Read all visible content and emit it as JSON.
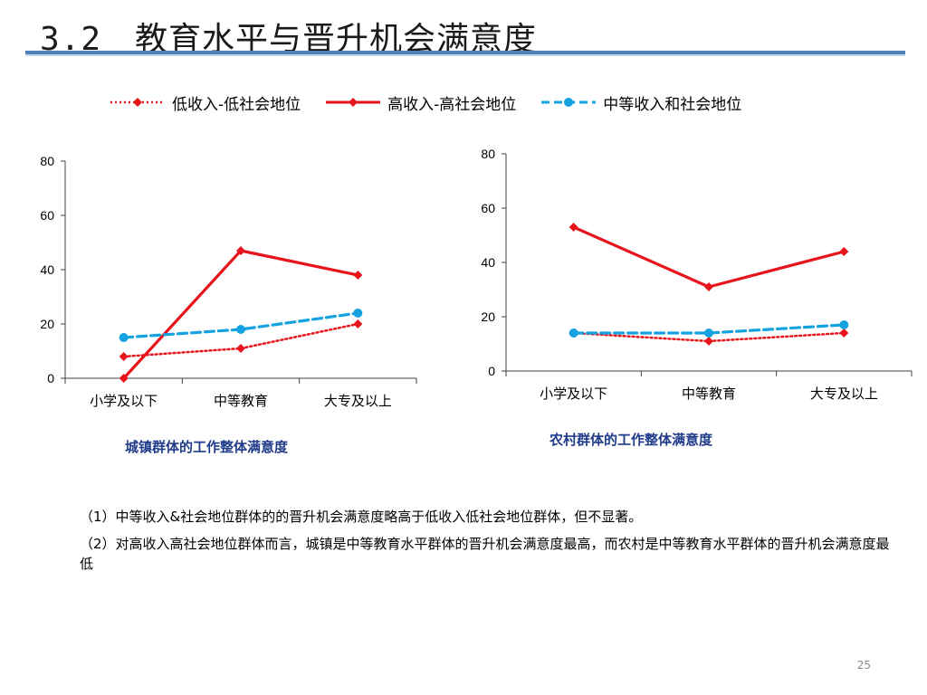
{
  "slide": {
    "title": "3.2　教育水平与晋升机会满意度",
    "page_number": "25",
    "notes": [
      "（1）中等收入&社会地位群体的的晋升机会满意度略高于低收入低社会地位群体，但不显著。",
      "（2）对高收入高社会地位群体而言，城镇是中等教育水平群体的晋升机会满意度最高，而农村是中等教育水平群体的晋升机会满意度最低"
    ]
  },
  "colors": {
    "title_rule": "#4f81bd",
    "red": "#e8141b",
    "blue": "#14a2e0",
    "axis": "#404040",
    "caption": "#1f3b8a"
  },
  "legend": [
    {
      "label": "低收入-低社会地位",
      "color": "#e8141b",
      "style": "dotted",
      "marker": "diamond"
    },
    {
      "label": "高收入-高社会地位",
      "color": "#e8141b",
      "style": "solid",
      "marker": "diamond"
    },
    {
      "label": "中等收入和社会地位",
      "color": "#14a2e0",
      "style": "dashed",
      "marker": "circle"
    }
  ],
  "chart_data": [
    {
      "type": "line",
      "caption": "城镇群体的工作整体满意度",
      "categories": [
        "小学及以下",
        "中等教育",
        "大专及以上"
      ],
      "ylim": [
        0,
        80
      ],
      "yticks": [
        0,
        20,
        40,
        60,
        80
      ],
      "series": [
        {
          "name": "低收入-低社会地位",
          "values": [
            8,
            11,
            20
          ]
        },
        {
          "name": "高收入-高社会地位",
          "values": [
            0,
            47,
            38
          ]
        },
        {
          "name": "中等收入和社会地位",
          "values": [
            15,
            18,
            24
          ]
        }
      ]
    },
    {
      "type": "line",
      "caption": "农村群体的工作整体满意度",
      "categories": [
        "小学及以下",
        "中等教育",
        "大专及以上"
      ],
      "ylim": [
        0,
        80
      ],
      "yticks": [
        0,
        20,
        40,
        60,
        80
      ],
      "series": [
        {
          "name": "低收入-低社会地位",
          "values": [
            14,
            11,
            14
          ]
        },
        {
          "name": "高收入-高社会地位",
          "values": [
            53,
            31,
            44
          ]
        },
        {
          "name": "中等收入和社会地位",
          "values": [
            14,
            14,
            17
          ]
        }
      ]
    }
  ]
}
